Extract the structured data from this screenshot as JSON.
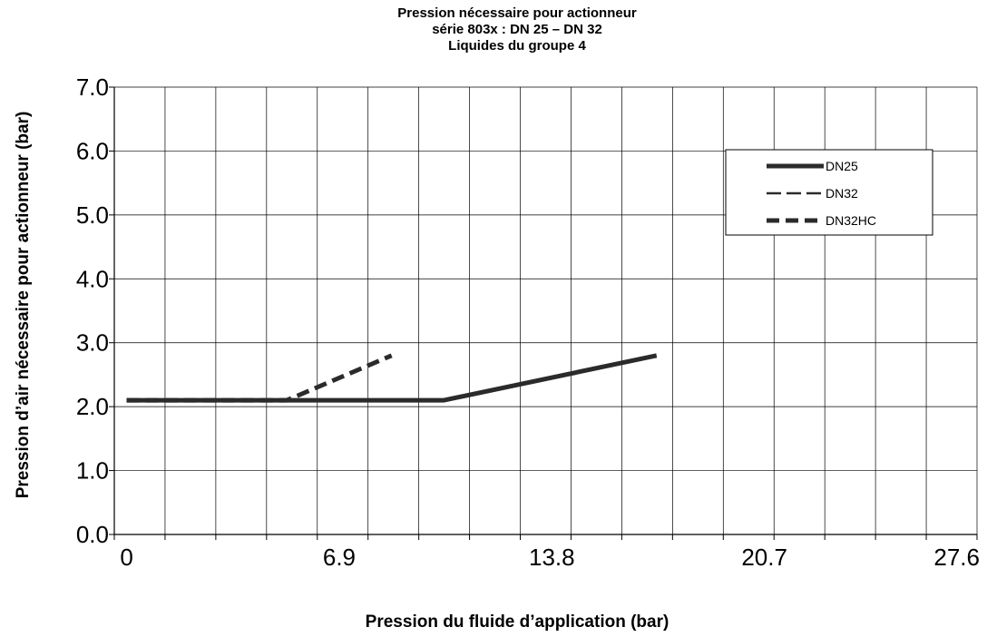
{
  "chart_data": {
    "type": "line",
    "title_lines": [
      "Pression nécessaire pour actionneur",
      "série 803x : DN 25 – DN 32",
      "Liquides du groupe 4"
    ],
    "xlabel": "Pression du fluide d’application (bar)",
    "ylabel": "Pression d’air nécessaire pour actionneur (bar)",
    "x_ticks": [
      "0",
      "6.9",
      "13.8",
      "20.7",
      "27.6"
    ],
    "y_ticks": [
      "0.0",
      "1.0",
      "2.0",
      "3.0",
      "4.0",
      "5.0",
      "6.0",
      "7.0"
    ],
    "xlim": [
      -0.4,
      27.6
    ],
    "ylim": [
      0,
      7
    ],
    "grid": true,
    "legend_position": "top-right",
    "series": [
      {
        "name": "DN25",
        "style": "solid",
        "color": "#2b2b2b",
        "x": [
          0,
          10.3,
          17.2
        ],
        "y": [
          2.1,
          2.1,
          2.8
        ]
      },
      {
        "name": "DN32",
        "style": "dash",
        "color": "#2b2b2b",
        "x": [
          0,
          10.3,
          17.2
        ],
        "y": [
          2.1,
          2.1,
          2.8
        ]
      },
      {
        "name": "DN32HC",
        "style": "dash-bold",
        "color": "#2b2b2b",
        "x": [
          0,
          5.2,
          8.6
        ],
        "y": [
          2.1,
          2.1,
          2.8
        ]
      }
    ]
  }
}
